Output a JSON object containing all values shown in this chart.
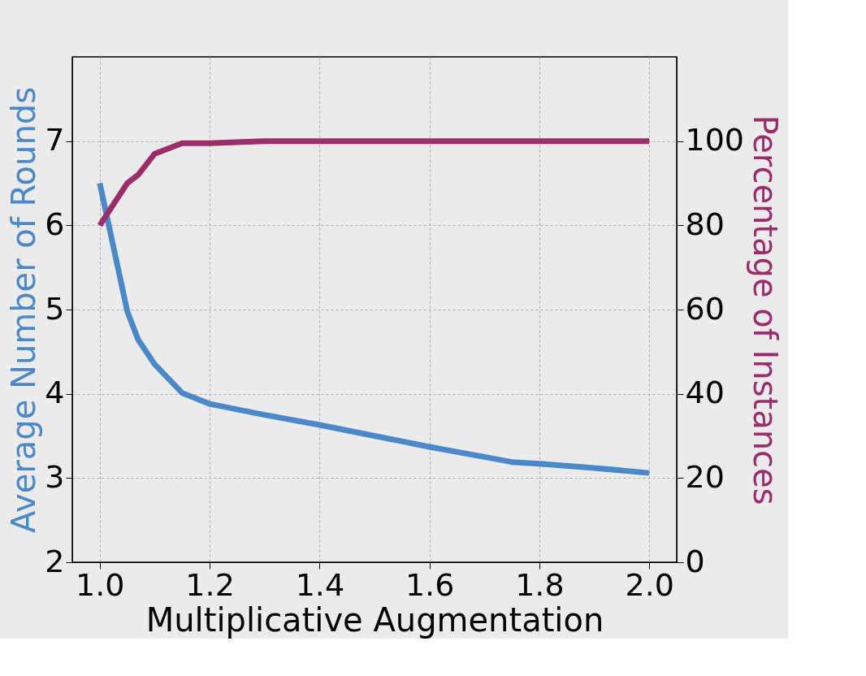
{
  "chart_data": {
    "type": "line",
    "xlabel": "Multiplicative Augmentation",
    "ylabel": "Average Number of Rounds",
    "y2label": "Percentage of Instances",
    "x": [
      1.0,
      1.05,
      1.07,
      1.1,
      1.15,
      1.2,
      1.3,
      1.4,
      1.5,
      1.6,
      1.7,
      1.75,
      1.8,
      1.9,
      2.0
    ],
    "series": [
      {
        "color": "#4a88c7",
        "values": [
          6.5,
          4.98,
          4.64,
          4.35,
          4.01,
          3.88,
          3.75,
          3.63,
          3.5,
          3.37,
          3.25,
          3.19,
          3.17,
          3.12,
          3.06
        ]
      },
      {
        "color": "#9b2d6b",
        "axis": "y2",
        "values": [
          80,
          90,
          92,
          97,
          99.5,
          99.5,
          100,
          100,
          100,
          100,
          100,
          100,
          100,
          100,
          100
        ]
      }
    ],
    "xlim": [
      0.95,
      2.05
    ],
    "xticks": [
      {
        "value": 1,
        "label": "1.0"
      },
      1.2,
      1.4,
      1.6,
      1.8,
      {
        "value": 2,
        "label": "2.0"
      }
    ],
    "ylim": [
      2,
      8
    ],
    "yticks": [
      2,
      3,
      4,
      5,
      6,
      7
    ],
    "y2lim": [
      0,
      120
    ],
    "y2ticks": [
      0,
      20,
      40,
      60,
      80,
      100
    ],
    "grid": true,
    "line_style": "solid"
  }
}
